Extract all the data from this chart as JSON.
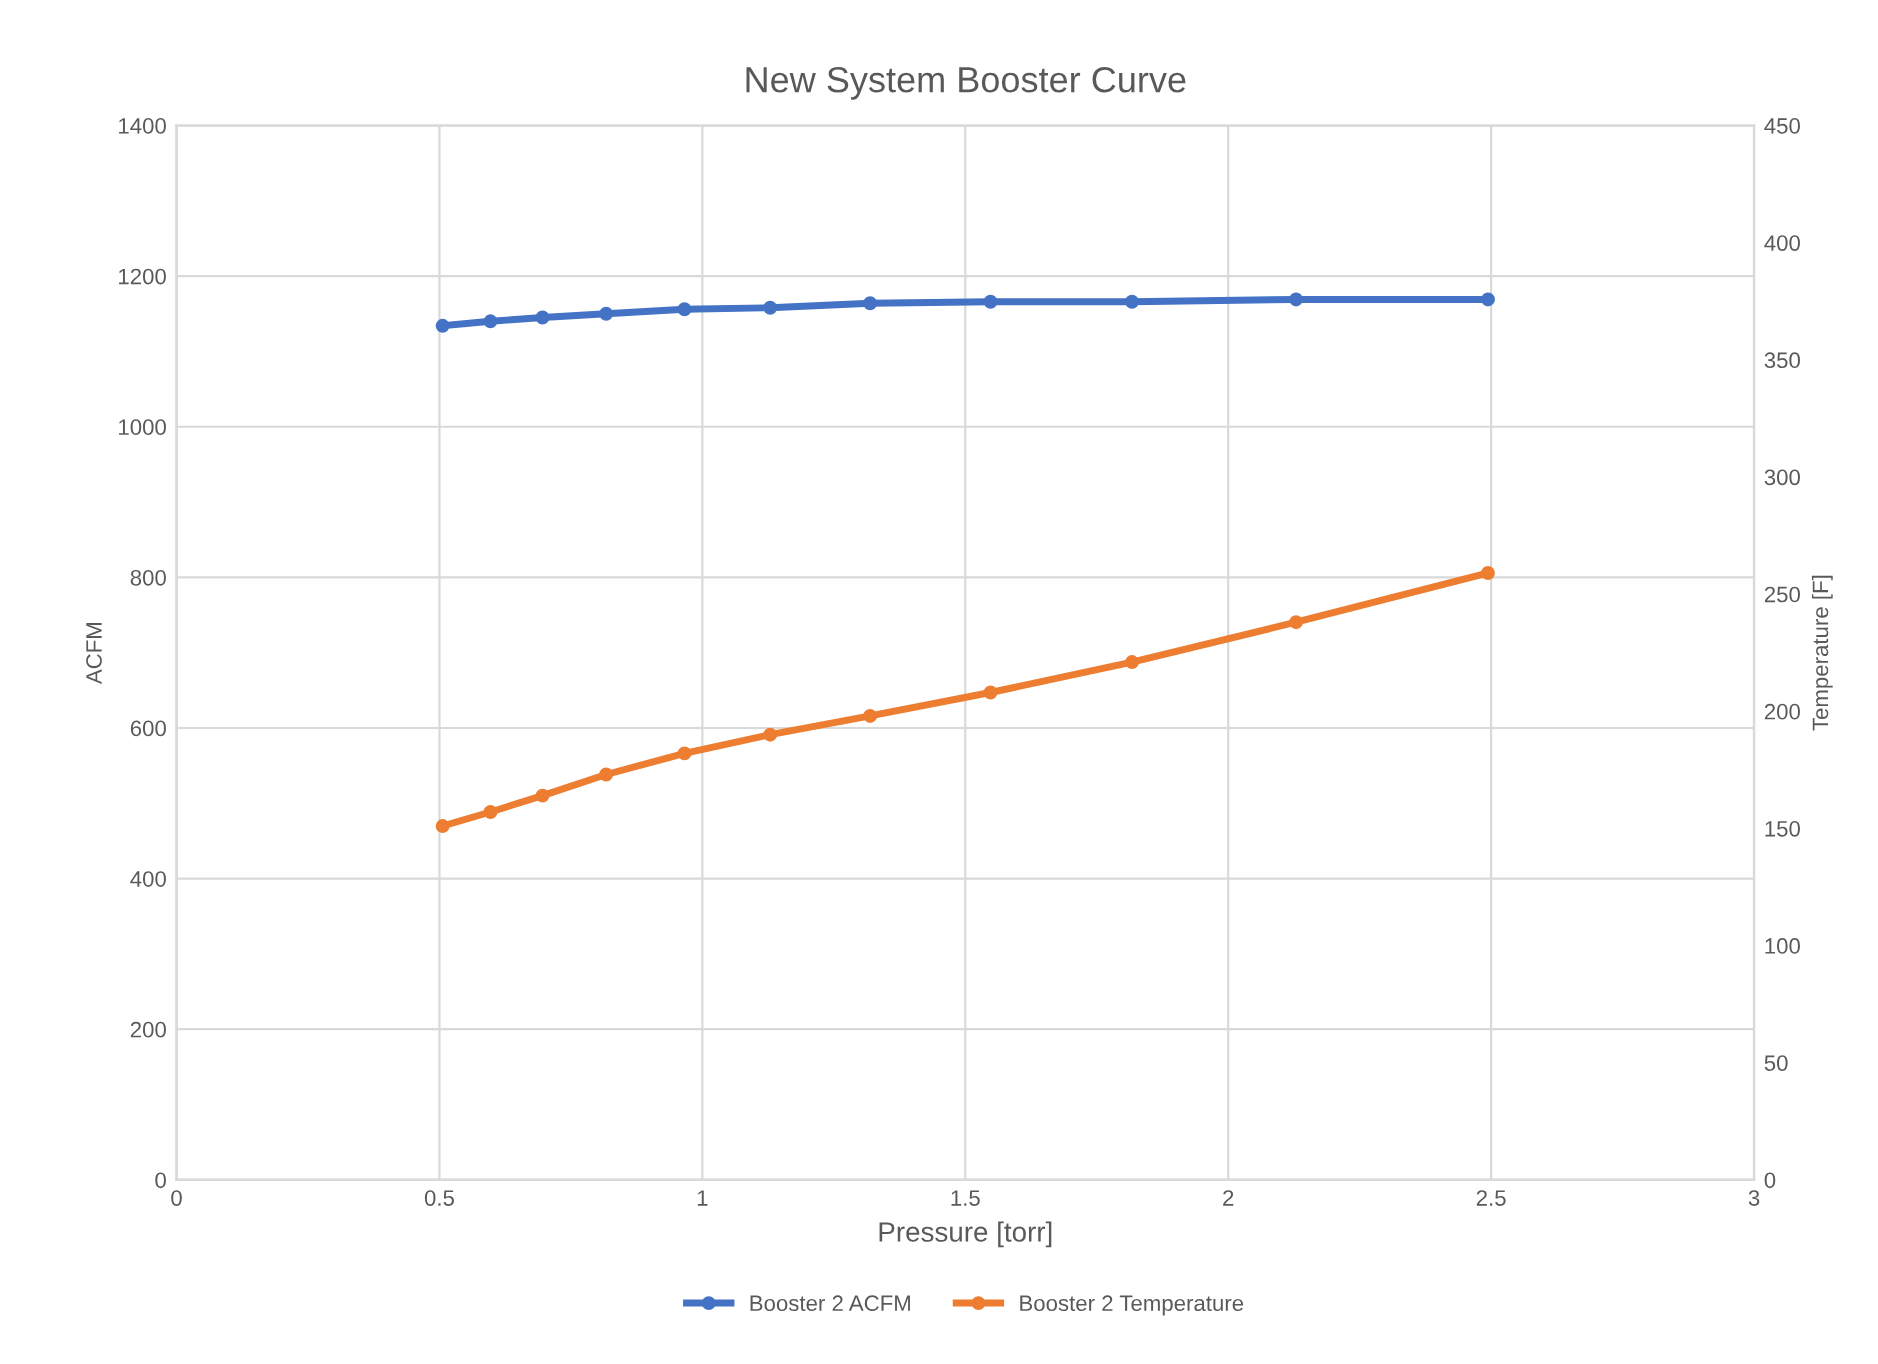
{
  "chart_data": {
    "type": "line",
    "title": "New System Booster Curve",
    "xlabel": "Pressure [torr]",
    "ylabel": "ACFM",
    "y2label": "Temperature [F]",
    "x": [
      0.506,
      0.597,
      0.696,
      0.817,
      0.966,
      1.129,
      1.319,
      1.548,
      1.817,
      2.129,
      2.494
    ],
    "series": [
      {
        "name": "Booster 2 ACFM",
        "color": "#4472c4",
        "values": [
          1134,
          1140,
          1145,
          1150,
          1156,
          1158,
          1164,
          1166,
          1166,
          1169,
          1169
        ]
      },
      {
        "name": "Booster 2 Temperature",
        "color": "#ed7d31",
        "axis": "y2",
        "values": [
          151,
          157,
          164,
          173,
          182,
          190,
          198,
          208,
          221,
          238,
          259
        ]
      }
    ],
    "xlim": [
      0,
      3
    ],
    "xticks": [
      0,
      0.5,
      1,
      1.5,
      2,
      2.5,
      3
    ],
    "ylim": [
      0,
      1400
    ],
    "yticks": [
      0,
      200,
      400,
      600,
      800,
      1000,
      1200,
      1400
    ],
    "y2lim": [
      0,
      450
    ],
    "y2ticks": [
      0,
      50,
      100,
      150,
      200,
      250,
      300,
      350,
      400,
      450
    ],
    "grid": true,
    "legend": "bottom",
    "marker": "circle",
    "line_style": "solid"
  }
}
